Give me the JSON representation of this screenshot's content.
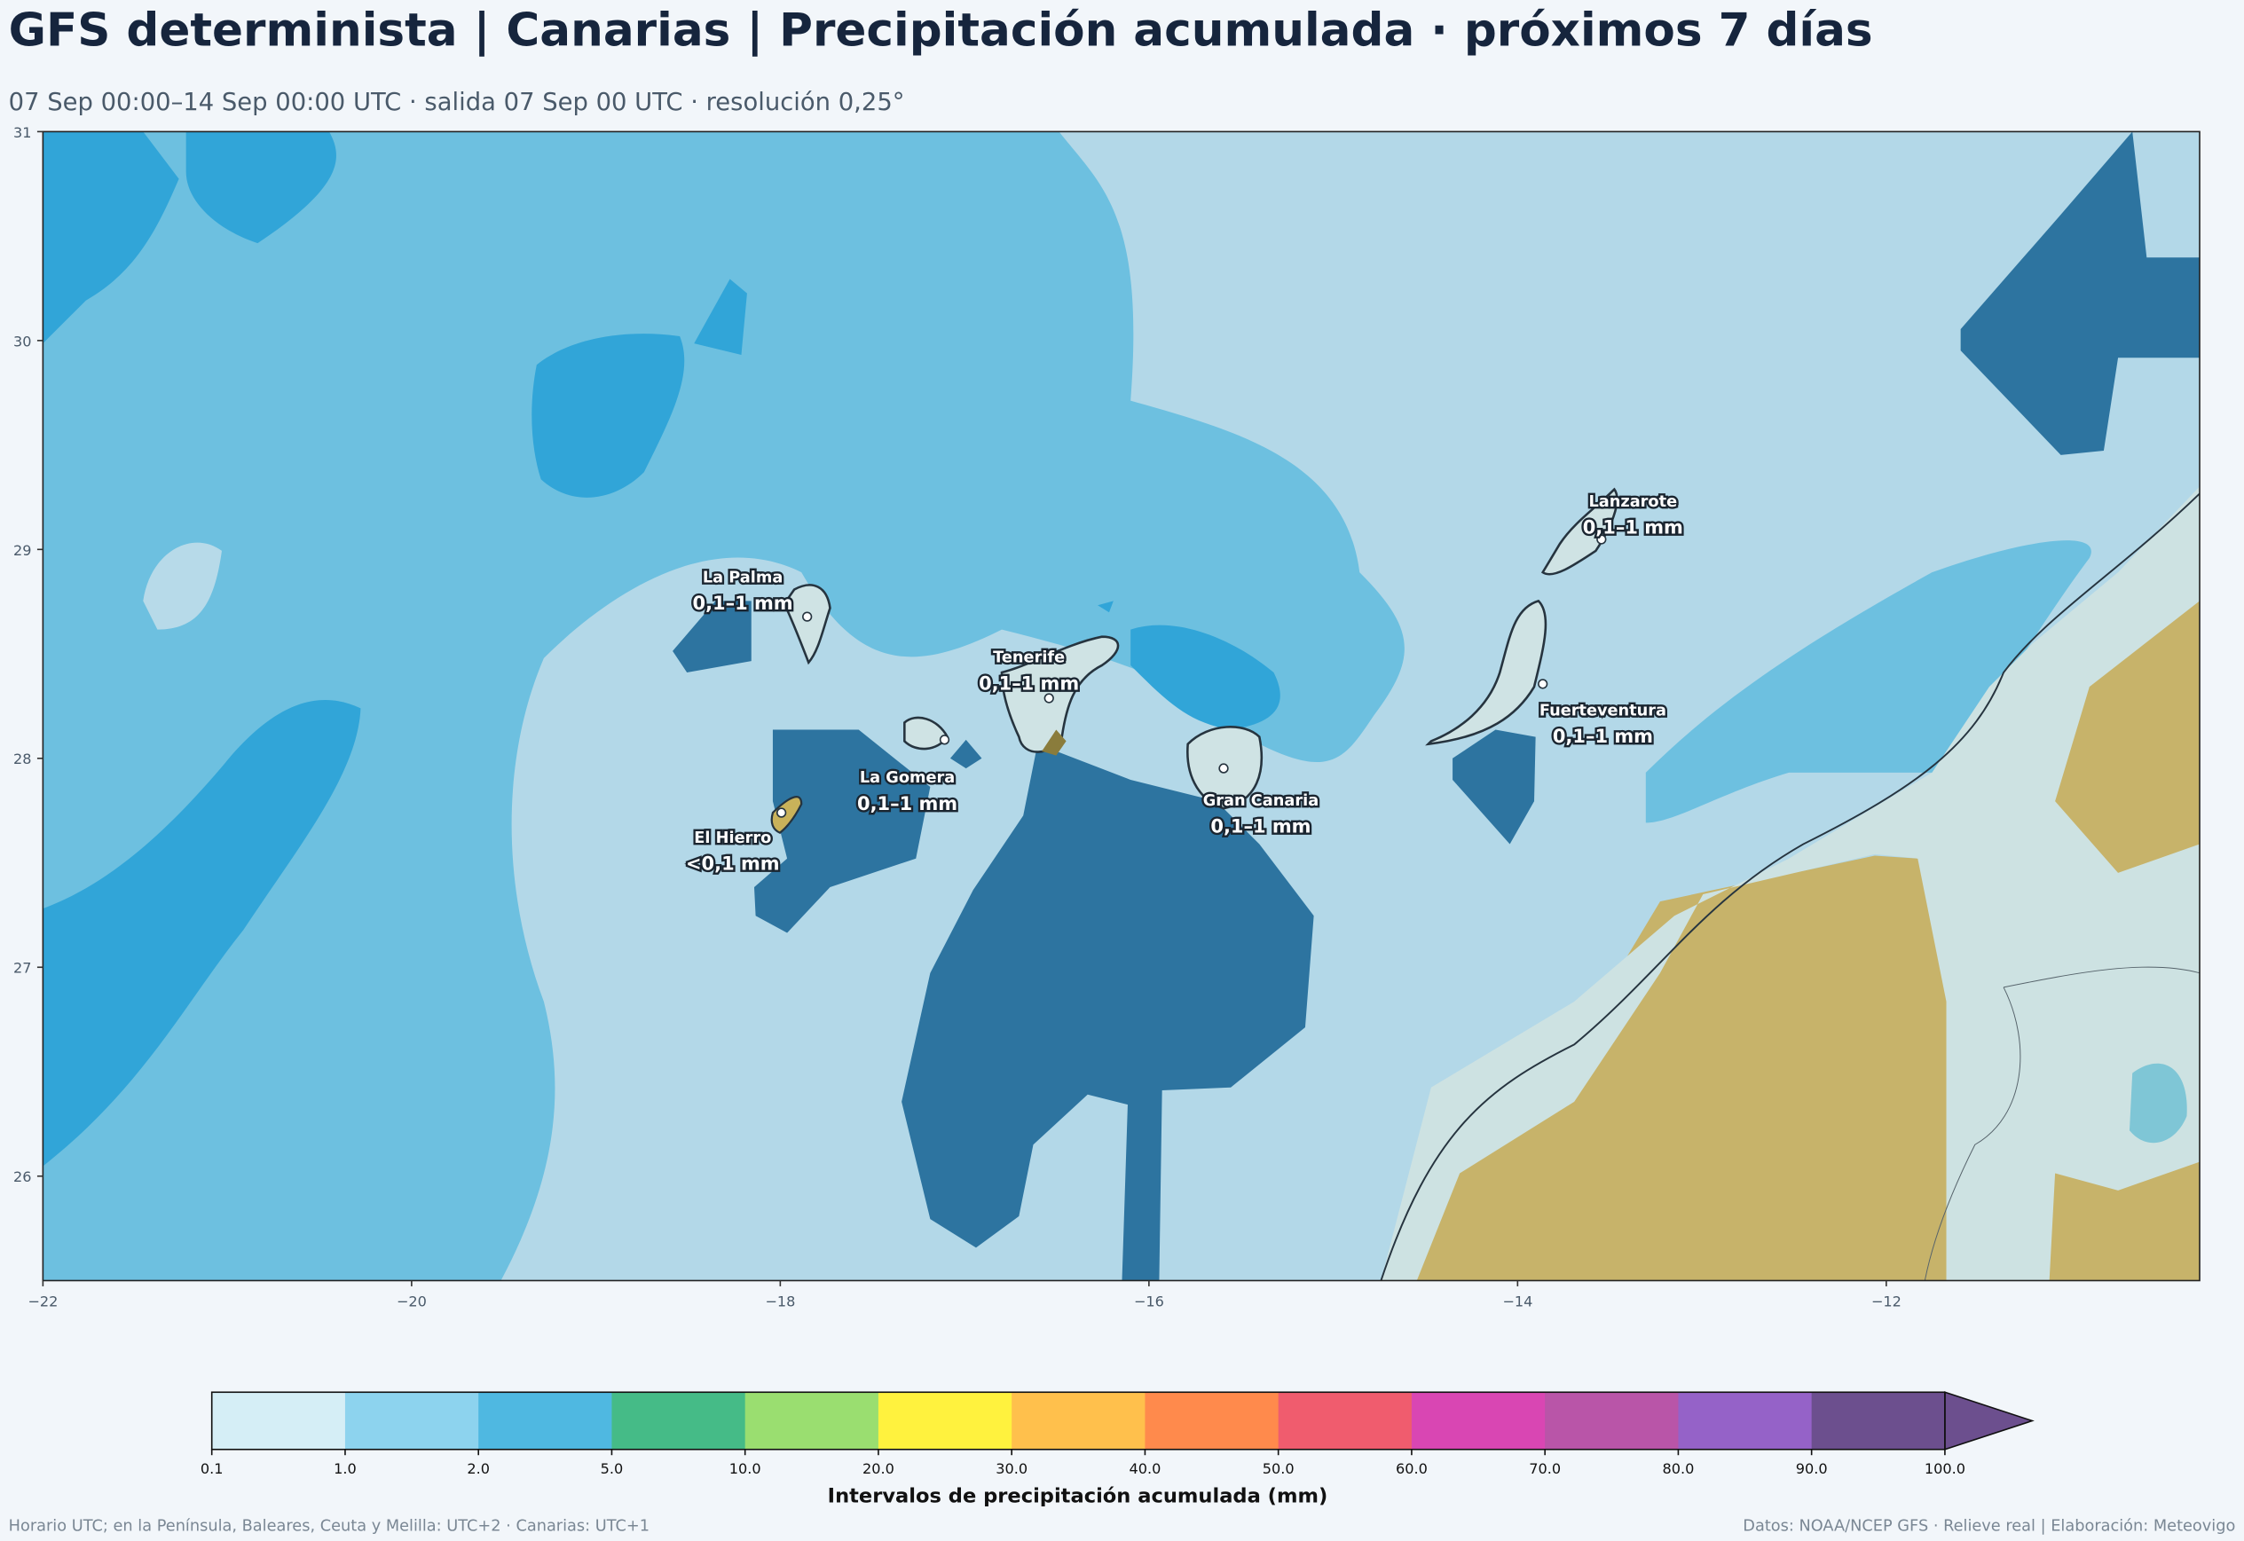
{
  "header": {
    "title": "GFS determinista | Canarias | Precipitación acumulada · próximos 7 días",
    "subtitle": "07 Sep 00:00–14 Sep 00:00 UTC · salida 07 Sep 00 UTC · resolución 0,25°"
  },
  "map": {
    "xlim": [
      -22,
      -10.3
    ],
    "ylim": [
      25.5,
      31
    ],
    "xticks": [
      {
        "value": -22,
        "label": "−22"
      },
      {
        "value": -20,
        "label": "−20"
      },
      {
        "value": -18,
        "label": "−18"
      },
      {
        "value": -16,
        "label": "−16"
      },
      {
        "value": -14,
        "label": "−14"
      },
      {
        "value": -12,
        "label": "−12"
      }
    ],
    "yticks": [
      26,
      27,
      28,
      29,
      30,
      31
    ],
    "islands": [
      {
        "name": "Lanzarote",
        "label": "0,1–1 mm"
      },
      {
        "name": "La Palma",
        "label": "0,1–1 mm"
      },
      {
        "name": "Tenerife",
        "label": "0,1–1 mm"
      },
      {
        "name": "Fuerteventura",
        "label": "0,1–1 mm"
      },
      {
        "name": "La Gomera",
        "label": "0,1–1 mm"
      },
      {
        "name": "Gran Canaria",
        "label": "0,1–1 mm"
      },
      {
        "name": "El Hierro",
        "label": "<0,1 mm"
      }
    ]
  },
  "colorbar": {
    "label": "Intervalos de precipitación acumulada (mm)",
    "ticks": [
      {
        "value": 0.1,
        "label": "0.1"
      },
      {
        "value": 1,
        "label": "1.0"
      },
      {
        "value": 2,
        "label": "2.0"
      },
      {
        "value": 5,
        "label": "5.0"
      },
      {
        "value": 10,
        "label": "10.0"
      },
      {
        "value": 20,
        "label": "20.0"
      },
      {
        "value": 30,
        "label": "30.0"
      },
      {
        "value": 40,
        "label": "40.0"
      },
      {
        "value": 50,
        "label": "50.0"
      },
      {
        "value": 60,
        "label": "60.0"
      },
      {
        "value": 70,
        "label": "70.0"
      },
      {
        "value": 80,
        "label": "80.0"
      },
      {
        "value": 90,
        "label": "90.0"
      },
      {
        "value": 100,
        "label": "100.0"
      }
    ],
    "colors": [
      "#d5eef6",
      "#8dd3ee",
      "#4fb8e1",
      "#45bb87",
      "#9ade70",
      "#fff23e",
      "#ffc04c",
      "#ff8a4c",
      "#f05c6e",
      "#d946b3",
      "#b955a8",
      "#9562c8",
      "#6c4f8e"
    ],
    "extend_color": "#6c4f8e"
  },
  "footer": {
    "left": "Horario UTC; en la Península, Baleares, Ceuta y Melilla: UTC+2 · Canarias: UTC+1",
    "right": "Datos: NOAA/NCEP GFS · Relieve real | Elaboración: Meteovigo"
  }
}
